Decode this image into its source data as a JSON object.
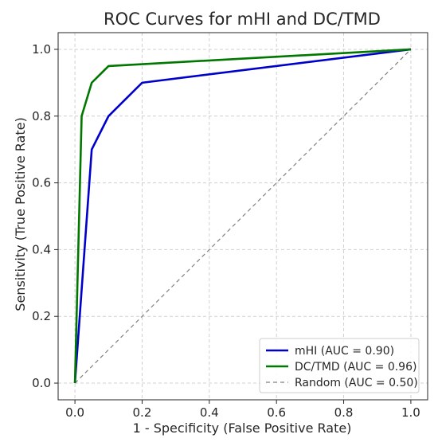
{
  "chart_data": {
    "type": "line",
    "title": "ROC Curves for mHI and DC/TMD",
    "xlabel": "1 - Specificity (False Positive Rate)",
    "ylabel": "Sensitivity (True Positive Rate)",
    "xlim": [
      -0.05,
      1.05
    ],
    "ylim": [
      -0.05,
      1.05
    ],
    "xticks": [
      0.0,
      0.2,
      0.4,
      0.6,
      0.8,
      1.0
    ],
    "yticks": [
      0.0,
      0.2,
      0.4,
      0.6,
      0.8,
      1.0
    ],
    "xtick_labels": [
      "0.0",
      "0.2",
      "0.4",
      "0.6",
      "0.8",
      "1.0"
    ],
    "ytick_labels": [
      "0.0",
      "0.2",
      "0.4",
      "0.6",
      "0.8",
      "1.0"
    ],
    "grid": true,
    "legend_position": "lower-right",
    "series": [
      {
        "name": "mHI (AUC = 0.90)",
        "color": "#0000cc",
        "style": "solid",
        "x": [
          0.0,
          0.05,
          0.1,
          0.2,
          1.0
        ],
        "y": [
          0.0,
          0.7,
          0.8,
          0.9,
          1.0
        ]
      },
      {
        "name": "DC/TMD (AUC = 0.96)",
        "color": "#007800",
        "style": "solid",
        "x": [
          0.0,
          0.02,
          0.05,
          0.1,
          1.0
        ],
        "y": [
          0.0,
          0.8,
          0.9,
          0.95,
          1.0
        ]
      },
      {
        "name": "Random (AUC = 0.50)",
        "color": "#808080",
        "style": "dashed",
        "x": [
          0.0,
          1.0
        ],
        "y": [
          0.0,
          1.0
        ]
      }
    ]
  }
}
